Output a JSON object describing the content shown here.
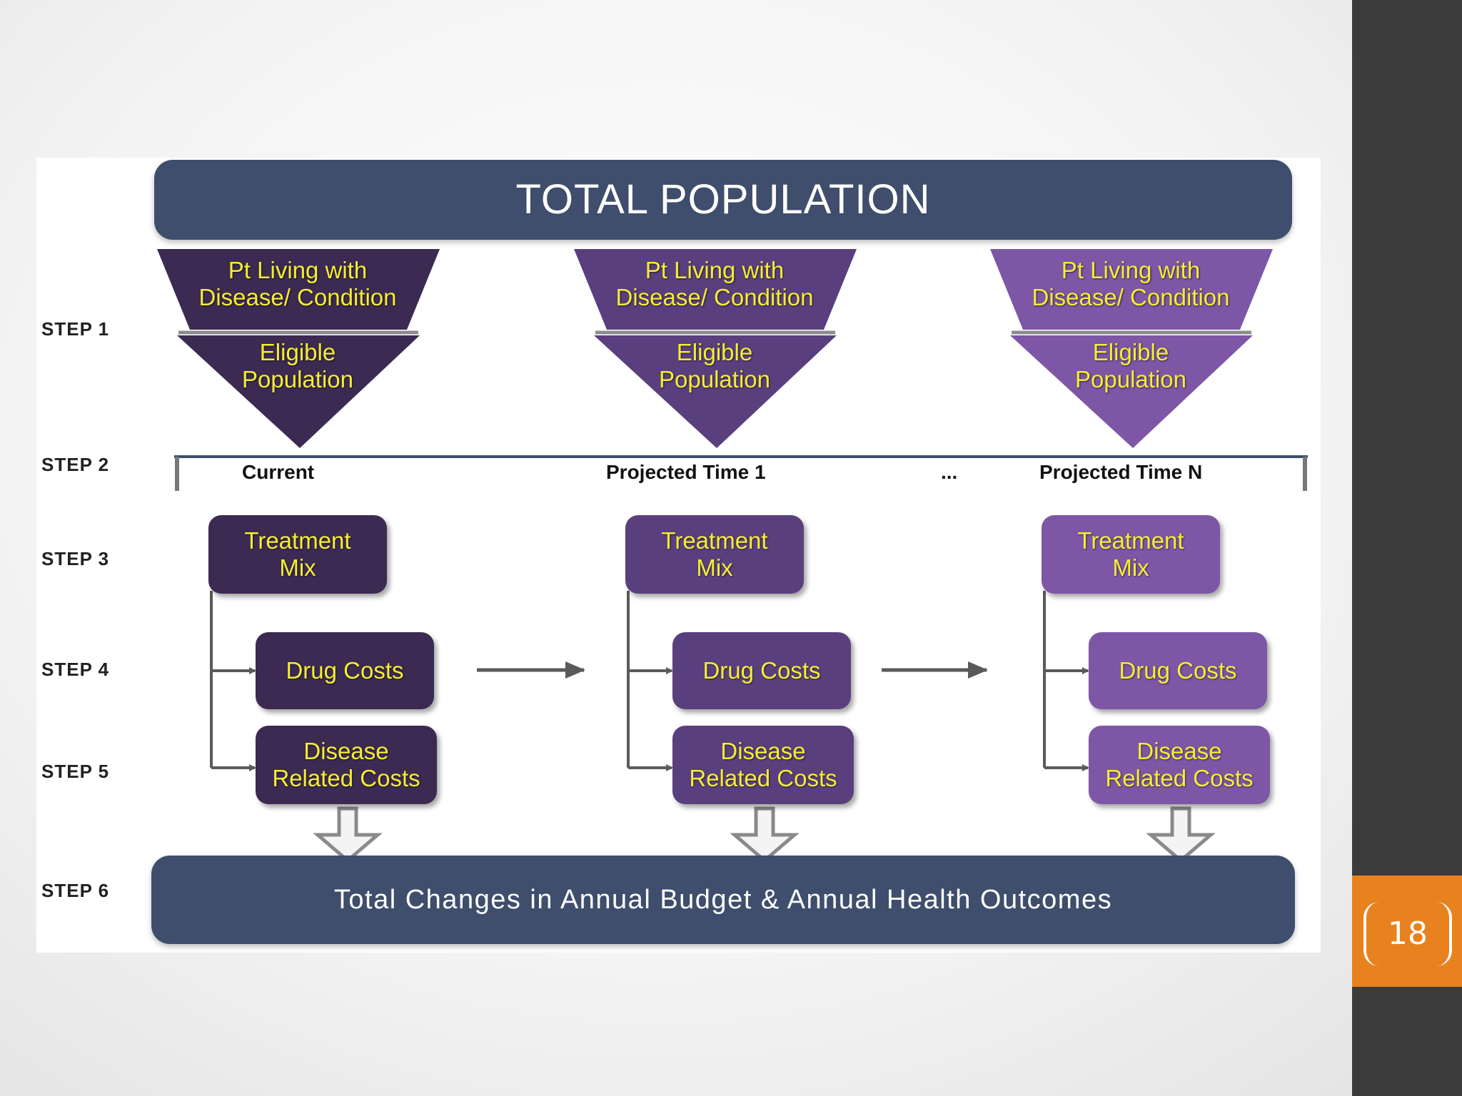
{
  "header": {
    "title": "TOTAL POPULATION"
  },
  "footer": {
    "outcome": "Total Changes in Annual Budget & Annual Health Outcomes"
  },
  "steps": [
    "STEP 1",
    "STEP 2",
    "STEP 3",
    "STEP 4",
    "STEP 5",
    "STEP 6"
  ],
  "timeline": {
    "labels": [
      "Current",
      "Projected Time 1",
      "...",
      "Projected Time N"
    ]
  },
  "columns": [
    {
      "top": "Pt Living with\nDisease/ Condition",
      "eligible": "Eligible\nPopulation",
      "treatment": "Treatment\nMix",
      "drug": "Drug Costs",
      "disease": "Disease\nRelated Costs",
      "color": "#3c2a52"
    },
    {
      "top": "Pt Living with\nDisease/ Condition",
      "eligible": "Eligible\nPopulation",
      "treatment": "Treatment\nMix",
      "drug": "Drug Costs",
      "disease": "Disease\nRelated Costs",
      "color": "#5a3f7e"
    },
    {
      "top": "Pt Living with\nDisease/ Condition",
      "eligible": "Eligible\nPopulation",
      "treatment": "Treatment\nMix",
      "drug": "Drug Costs",
      "disease": "Disease\nRelated Costs",
      "color": "#7d56a6"
    }
  ],
  "slide": {
    "page_number": "18",
    "accent": "#e8821e",
    "sidebar": "#3b3b3b",
    "text_color": "#f5ee33"
  }
}
